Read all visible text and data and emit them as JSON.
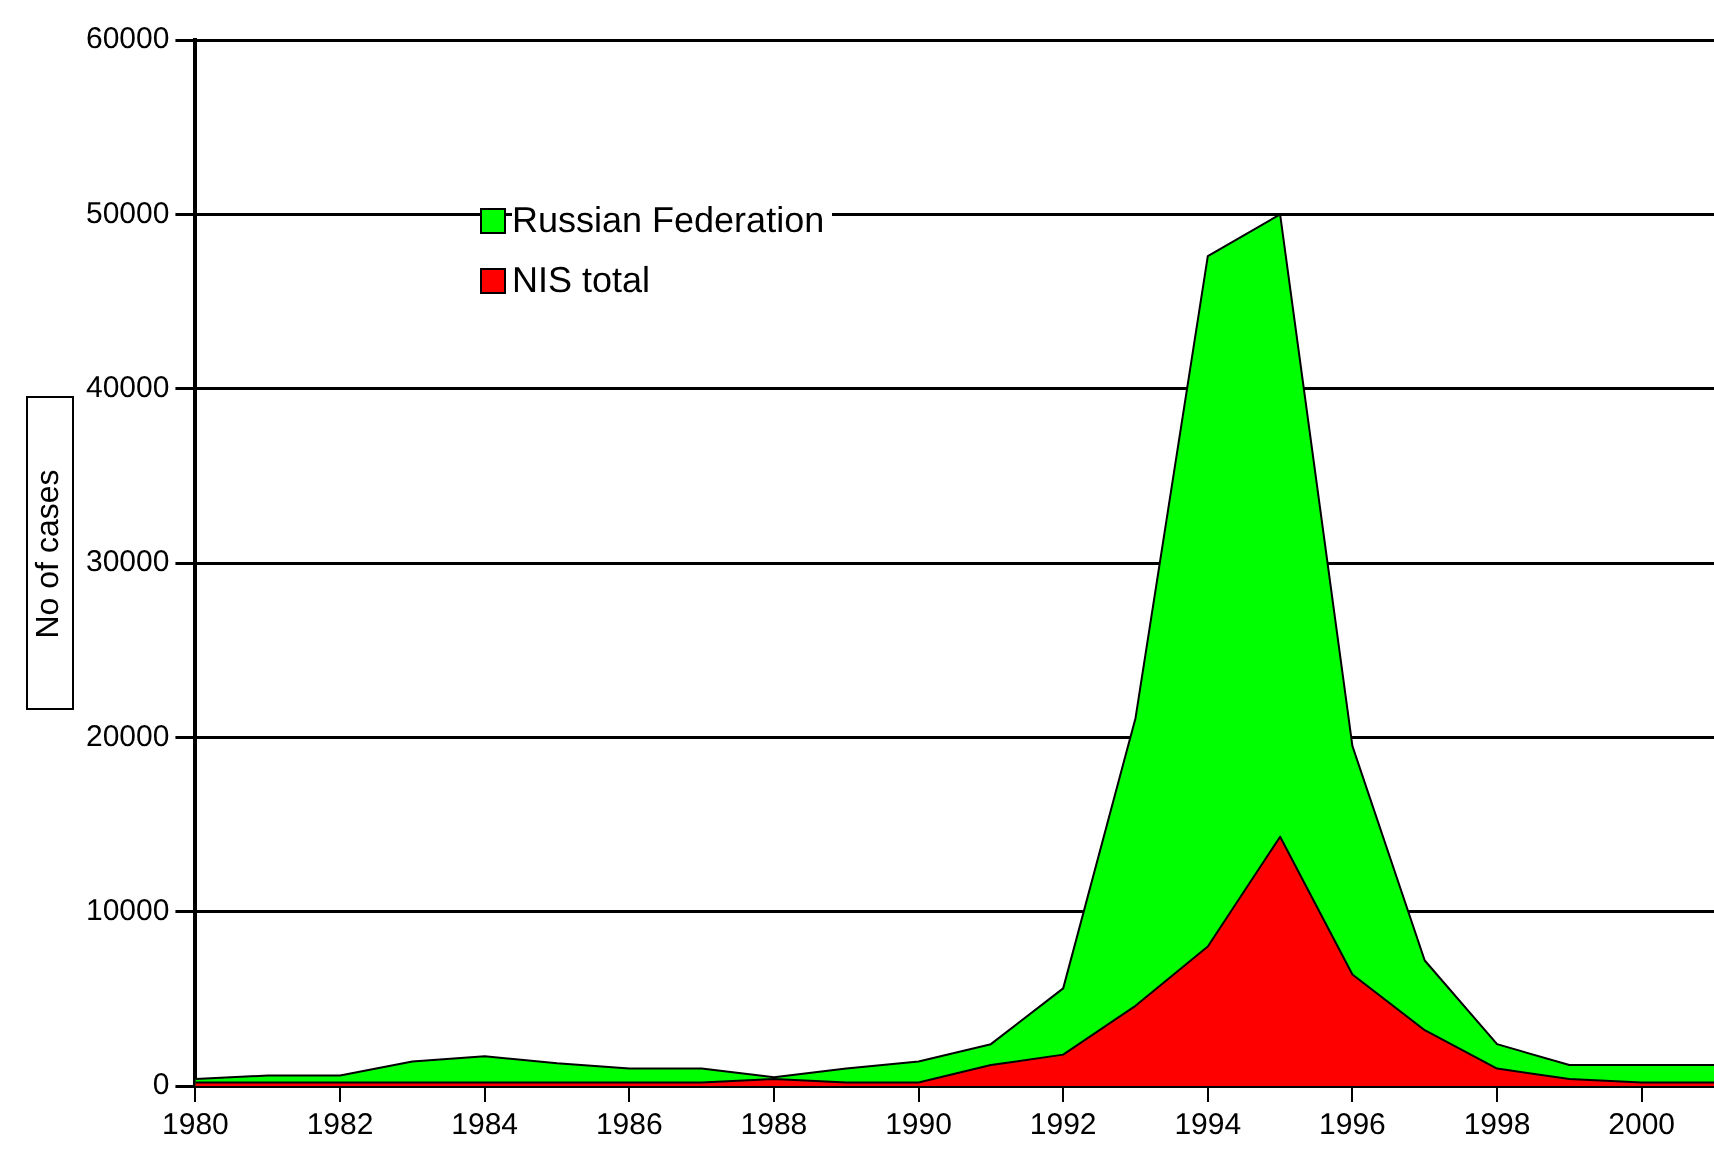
{
  "chart_data": {
    "type": "area",
    "ylabel": "No of cases",
    "x": [
      1980,
      1981,
      1982,
      1983,
      1984,
      1985,
      1986,
      1987,
      1988,
      1989,
      1990,
      1991,
      1992,
      1993,
      1994,
      1995,
      1996,
      1997,
      1998,
      1999,
      2000,
      2001
    ],
    "series": [
      {
        "name": "Russian Federation",
        "color": "#00ff00",
        "values": [
          400,
          600,
          600,
          1400,
          1700,
          1300,
          1000,
          1000,
          500,
          1000,
          1400,
          2400,
          5600,
          21100,
          47600,
          50000,
          19500,
          7200,
          2400,
          1200,
          1200,
          1200
        ]
      },
      {
        "name": "NIS total",
        "color": "#ff0000",
        "values": [
          200,
          200,
          200,
          200,
          200,
          200,
          200,
          200,
          400,
          200,
          200,
          1200,
          1800,
          4600,
          8000,
          14300,
          6400,
          3200,
          1000,
          400,
          200,
          200
        ]
      }
    ],
    "xlim": [
      1980,
      2001
    ],
    "xticks": [
      1980,
      1982,
      1984,
      1986,
      1988,
      1990,
      1992,
      1994,
      1996,
      1998,
      2000
    ],
    "ylim": [
      0,
      60000
    ],
    "yticks": [
      0,
      10000,
      20000,
      30000,
      40000,
      50000,
      60000
    ],
    "grid": "y",
    "legend": "top left",
    "line_style": "solid",
    "marker": "none"
  }
}
